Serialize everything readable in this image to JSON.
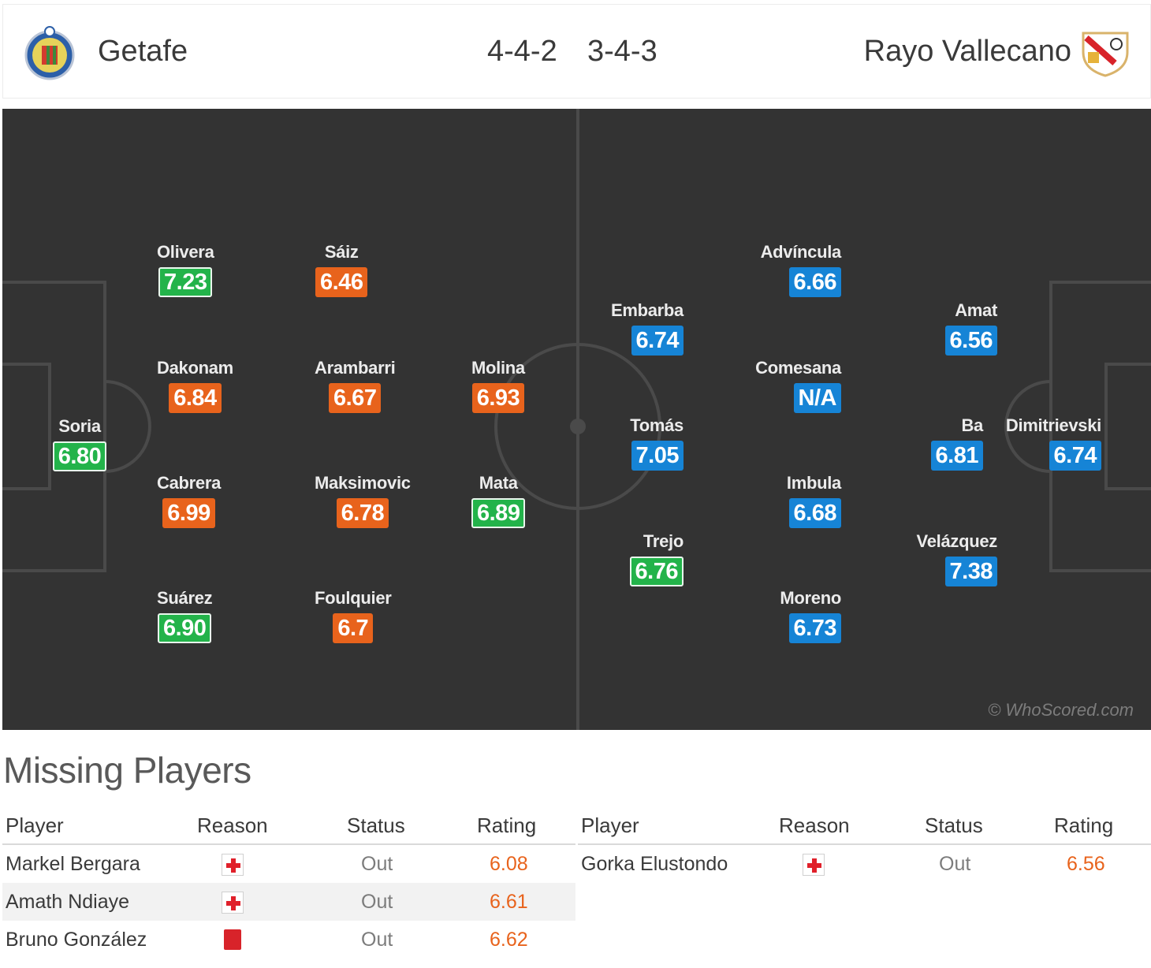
{
  "header": {
    "home_team": "Getafe",
    "away_team": "Rayo Vallecano",
    "home_formation": "4-4-2",
    "away_formation": "3-4-3",
    "home_crest_icon": "getafe-crest-icon",
    "away_crest_icon": "rayo-vallecano-crest-icon"
  },
  "pitch": {
    "watermark": "© WhoScored.com",
    "home_players": [
      {
        "name": "Soria",
        "rating": "6.80",
        "color": "green"
      },
      {
        "name": "Olivera",
        "rating": "7.23",
        "color": "green"
      },
      {
        "name": "Dakonam",
        "rating": "6.84",
        "color": "orange"
      },
      {
        "name": "Cabrera",
        "rating": "6.99",
        "color": "orange"
      },
      {
        "name": "Suárez",
        "rating": "6.90",
        "color": "green"
      },
      {
        "name": "Sáiz",
        "rating": "6.46",
        "color": "orange"
      },
      {
        "name": "Arambarri",
        "rating": "6.67",
        "color": "orange"
      },
      {
        "name": "Maksimovic",
        "rating": "6.78",
        "color": "orange"
      },
      {
        "name": "Foulquier",
        "rating": "6.7",
        "color": "orange"
      },
      {
        "name": "Molina",
        "rating": "6.93",
        "color": "orange"
      },
      {
        "name": "Mata",
        "rating": "6.89",
        "color": "green"
      }
    ],
    "away_players": [
      {
        "name": "Embarba",
        "rating": "6.74",
        "color": "blue"
      },
      {
        "name": "Tomás",
        "rating": "7.05",
        "color": "blue"
      },
      {
        "name": "Trejo",
        "rating": "6.76",
        "color": "green"
      },
      {
        "name": "Advíncula",
        "rating": "6.66",
        "color": "blue"
      },
      {
        "name": "Comesana",
        "rating": "N/A",
        "color": "blue"
      },
      {
        "name": "Imbula",
        "rating": "6.68",
        "color": "blue"
      },
      {
        "name": "Moreno",
        "rating": "6.73",
        "color": "blue"
      },
      {
        "name": "Amat",
        "rating": "6.56",
        "color": "blue"
      },
      {
        "name": "Ba",
        "rating": "6.81",
        "color": "blue"
      },
      {
        "name": "Velázquez",
        "rating": "7.38",
        "color": "blue"
      },
      {
        "name": "Dimitrievski",
        "rating": "6.74",
        "color": "blue"
      }
    ]
  },
  "missing": {
    "title": "Missing Players",
    "columns": {
      "player": "Player",
      "reason": "Reason",
      "status": "Status",
      "rating": "Rating"
    },
    "home": [
      {
        "player": "Markel Bergara",
        "reason": "injury-icon",
        "status": "Out",
        "rating": "6.08"
      },
      {
        "player": "Amath Ndiaye",
        "reason": "injury-icon",
        "status": "Out",
        "rating": "6.61"
      },
      {
        "player": "Bruno González",
        "reason": "red-card-icon",
        "status": "Out",
        "rating": "6.62"
      }
    ],
    "away": [
      {
        "player": "Gorka Elustondo",
        "reason": "injury-icon",
        "status": "Out",
        "rating": "6.56"
      }
    ]
  },
  "colors": {
    "orange": "#e8631c",
    "green": "#23b34a",
    "blue": "#1684d6",
    "pitch": "#333333"
  }
}
